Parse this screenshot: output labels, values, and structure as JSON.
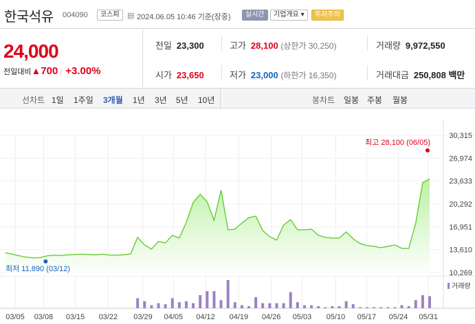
{
  "header": {
    "name": "한국석유",
    "code": "004090",
    "market": "코스피",
    "datetime": "2024.06.05 10:46 기준(장중)",
    "realtime_label": "실시간",
    "company_label": "기업개요 ▾",
    "warning_label": "투자주의"
  },
  "price": {
    "current": "24,000",
    "change_label": "전일대비",
    "change_amount": "700",
    "change_pct": "+3.00%"
  },
  "stats": {
    "prev_close": {
      "label": "전일",
      "value": "23,300"
    },
    "high": {
      "label": "고가",
      "value": "28,100",
      "sub": "(상한가 30,250)"
    },
    "volume": {
      "label": "거래량",
      "value": "9,972,550"
    },
    "open": {
      "label": "시가",
      "value": "23,650"
    },
    "low": {
      "label": "저가",
      "value": "23,000",
      "sub": "(하한가 16,350)"
    },
    "amount": {
      "label": "거래대금",
      "value": "250,808 백만"
    }
  },
  "tabs": {
    "line_chart_label": "선차트",
    "periods": [
      "1일",
      "1주일",
      "3개월",
      "1년",
      "3년",
      "5년",
      "10년"
    ],
    "active_period": "3개월",
    "candle_chart_label": "봉차트",
    "candles": [
      "일봉",
      "주봉",
      "월봉"
    ]
  },
  "chart_data": {
    "type": "line",
    "y_ticks": [
      "30,315",
      "26,974",
      "23,633",
      "20,292",
      "16,951",
      "13,610",
      "10,269"
    ],
    "ylim": [
      10269,
      30315
    ],
    "x_ticks": [
      "03/05",
      "03/08",
      "03/15",
      "03/22",
      "03/29",
      "04/05",
      "04/12",
      "04/19",
      "04/26",
      "05/03",
      "05/10",
      "05/17",
      "05/24",
      "05/31"
    ],
    "max_label": "최고 28,100 (06/05)",
    "min_label": "최저 11,890 (03/12)",
    "volume_legend": "거래량",
    "series": [
      {
        "values": [
          13150,
          12950,
          12700,
          12500,
          12400,
          12450,
          12700,
          12800,
          12750,
          12850,
          12900,
          12950,
          12900,
          12850,
          12950,
          12800,
          12800,
          12850,
          13000,
          15400,
          14300,
          13700,
          14800,
          14600,
          15700,
          15300,
          17600,
          20500,
          21700,
          20600,
          17900,
          22300,
          16500,
          16600,
          17500,
          18300,
          18500,
          16400,
          15500,
          15000,
          17200,
          18000,
          16500,
          16500,
          16600,
          15700,
          15400,
          15300,
          15300,
          16200,
          15200,
          14500,
          14200,
          14100,
          13900,
          14100,
          14300,
          13800,
          13800,
          17500,
          23400,
          23950
        ]
      }
    ],
    "volumes": [
      0,
      0,
      0,
      0,
      0,
      0,
      0,
      0,
      0,
      0,
      0,
      0,
      0,
      0,
      0,
      0,
      0,
      0,
      0,
      10,
      7,
      3,
      5,
      4,
      10,
      6,
      7,
      5,
      13,
      17,
      17,
      8,
      28,
      6,
      3,
      2,
      11,
      5,
      5,
      5,
      5,
      16,
      6,
      3,
      3,
      2,
      1,
      2,
      2,
      7,
      4,
      1,
      1,
      1,
      1,
      1,
      1,
      3,
      2,
      8,
      13,
      12
    ]
  }
}
